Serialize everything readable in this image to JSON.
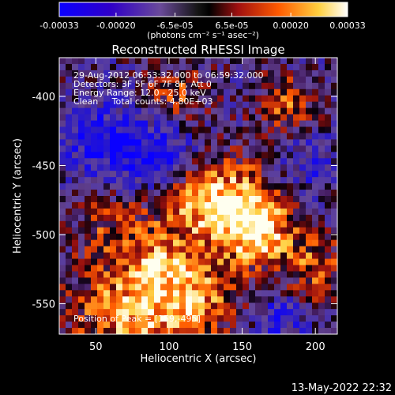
{
  "colorbar": {
    "tick_labels": [
      "-0.00033",
      "-0.00020",
      "-6.5e-05",
      "6.5e-05",
      "0.00020",
      "0.00033"
    ],
    "units": "(photons cm⁻² s⁻¹ asec⁻²)",
    "range": [
      -0.00033,
      0.00033
    ]
  },
  "chart_data": {
    "type": "heatmap",
    "title": "Reconstructed RHESSI Image",
    "xlabel": "Heliocentric X (arcsec)",
    "ylabel": "Heliocentric Y (arcsec)",
    "xlim": [
      25,
      215
    ],
    "ylim": [
      -572,
      -372
    ],
    "x_ticks": [
      50,
      100,
      150,
      200
    ],
    "y_ticks": [
      -400,
      -450,
      -500,
      -550
    ],
    "annotations": [
      "29-Aug-2012 06:53:32.000 to 06:59:32.000",
      "Detectors: 3F 5F 6F 7F 8F, Att 0",
      "Energy Range: 12.0 - 25.0 keV",
      "Clean     Total counts: 4.80E+03"
    ],
    "peak_label": "Position of Peak = [159,-495]",
    "peak": [
      159,
      -495
    ]
  },
  "footer": {
    "timestamp": "13-May-2022 22:32"
  }
}
